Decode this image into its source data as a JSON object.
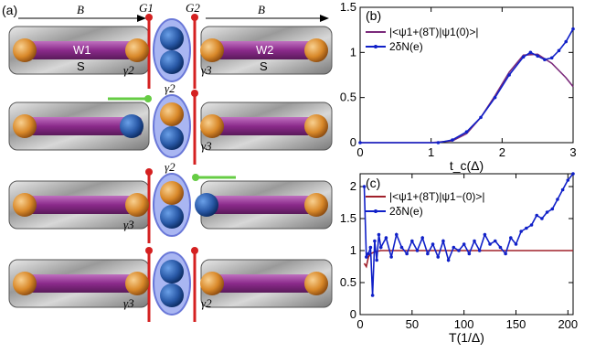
{
  "panel_a": {
    "label": "(a)",
    "gate_left": "G1",
    "gate_right": "G2",
    "field_left": "B",
    "field_right": "B",
    "wire_left": "W1",
    "wire_right": "W2",
    "substrate_left": "S",
    "substrate_right": "S",
    "rows": [
      {
        "left_label": "γ2",
        "right_label": "γ3",
        "center_label": ""
      },
      {
        "left_label": "",
        "right_label": "γ3",
        "center_label": "γ2"
      },
      {
        "left_label": "γ3",
        "right_label": "",
        "center_label": "γ2"
      },
      {
        "left_label": "γ3",
        "right_label": "γ2",
        "center_label": ""
      }
    ],
    "colors": {
      "wire": "#8b2a8b",
      "sphere_orange": "#d9892a",
      "sphere_blue": "#2a5aa8",
      "gate": "#d42020",
      "lever": "#66cc44"
    }
  },
  "chart_data": [
    {
      "type": "line",
      "panel_label": "(b)",
      "xlabel": "t_c(Δ)",
      "ylabel": "",
      "xlim": [
        0,
        3
      ],
      "ylim": [
        0,
        1.5
      ],
      "x_ticks": [
        "0",
        "1",
        "2",
        "3"
      ],
      "y_ticks": [
        "0",
        "0.5",
        "1",
        "1.5"
      ],
      "legend_position": "top-right",
      "series": [
        {
          "name": "|<ψ1+(8T)|ψ1(0)>|",
          "color": "#7b2a7b",
          "x": [
            0,
            1.0,
            1.3,
            1.5,
            1.7,
            1.9,
            2.1,
            2.3,
            2.5,
            2.7,
            2.9,
            3.0
          ],
          "values": [
            0,
            0,
            0.02,
            0.1,
            0.28,
            0.52,
            0.78,
            0.97,
            0.98,
            0.88,
            0.72,
            0.62
          ]
        },
        {
          "name": "2δN(e)",
          "color": "#1020c8",
          "x": [
            0,
            1.1,
            1.3,
            1.5,
            1.7,
            1.9,
            2.1,
            2.3,
            2.4,
            2.5,
            2.6,
            2.7,
            2.8,
            2.9,
            3.0
          ],
          "values": [
            0,
            0,
            0.03,
            0.12,
            0.28,
            0.5,
            0.75,
            0.95,
            1.0,
            0.96,
            0.92,
            0.94,
            1.02,
            1.12,
            1.26
          ]
        }
      ]
    },
    {
      "type": "line",
      "panel_label": "(c)",
      "xlabel": "T(1/Δ)",
      "ylabel": "",
      "xlim": [
        0,
        205
      ],
      "ylim": [
        0,
        2.2
      ],
      "x_ticks": [
        "0",
        "50",
        "100",
        "150",
        "200"
      ],
      "y_ticks": [
        "0",
        "0.5",
        "1",
        "1.5",
        "2"
      ],
      "legend_position": "top-left",
      "series": [
        {
          "name": "|<ψ1+(8T)|ψ1−(0)>|",
          "color": "#a0202a",
          "x": [
            4,
            6,
            8,
            10,
            14,
            20,
            30,
            50,
            100,
            150,
            205
          ],
          "values": [
            0.8,
            0.75,
            0.9,
            0.95,
            0.98,
            1.0,
            1.0,
            1.0,
            1.0,
            1.0,
            1.0
          ]
        },
        {
          "name": "2δN(e)",
          "color": "#1020c8",
          "x": [
            4,
            6,
            8,
            10,
            12,
            14,
            16,
            18,
            20,
            25,
            30,
            35,
            40,
            45,
            50,
            55,
            60,
            65,
            70,
            75,
            80,
            85,
            90,
            95,
            100,
            105,
            110,
            115,
            120,
            125,
            130,
            135,
            140,
            145,
            150,
            155,
            160,
            165,
            170,
            175,
            180,
            185,
            190,
            195,
            200,
            205
          ],
          "values": [
            2.0,
            0.9,
            0.95,
            1.05,
            0.3,
            1.15,
            0.85,
            1.25,
            1.05,
            1.2,
            0.9,
            1.25,
            1.05,
            0.95,
            1.15,
            1.0,
            1.2,
            0.95,
            1.1,
            0.9,
            1.15,
            0.85,
            1.05,
            1.0,
            1.1,
            0.95,
            1.15,
            1.0,
            1.25,
            1.1,
            1.15,
            1.05,
            0.95,
            1.2,
            1.1,
            1.3,
            1.35,
            1.4,
            1.55,
            1.5,
            1.6,
            1.65,
            1.8,
            1.95,
            2.1,
            2.2
          ]
        }
      ]
    }
  ]
}
